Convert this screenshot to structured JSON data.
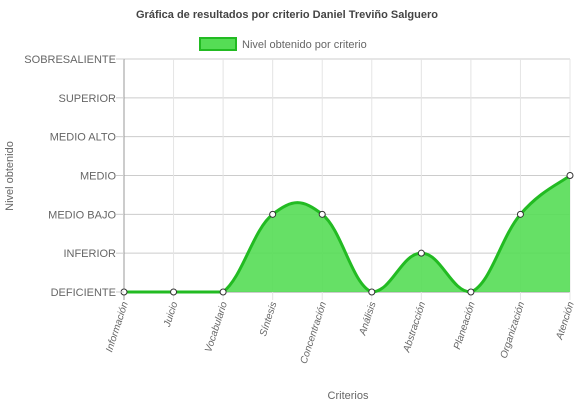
{
  "chart_data": {
    "type": "area",
    "title": "Gráfica de resultados por criterio Daniel Treviño Salguero",
    "xlabel": "Criterios",
    "ylabel": "Nivel obtenido",
    "legend": {
      "position": "top",
      "entries": [
        "Nivel obtenido por criterio"
      ]
    },
    "categories": [
      "Información",
      "Juicio",
      "Vocabulario",
      "Síntesis",
      "Concentración",
      "Análisis",
      "Abstracción",
      "Planeación",
      "Organización",
      "Atención"
    ],
    "y_tick_labels": [
      "DEFICIENTE",
      "INFERIOR",
      "MEDIO BAJO",
      "MEDIO",
      "MEDIO ALTO",
      "SUPERIOR",
      "SOBRESALIENTE"
    ],
    "ylim": [
      0,
      6
    ],
    "grid": true,
    "series": [
      {
        "name": "Nivel obtenido por criterio",
        "values": [
          0,
          0,
          0,
          2,
          2,
          0,
          1,
          0,
          2,
          3
        ]
      }
    ],
    "colors": {
      "line": "#22bb22",
      "fill": "#55dd55",
      "point_fill": "#ffffff",
      "point_stroke": "#333333",
      "grid": "#cccccc",
      "text": "#666666",
      "title": "#444444"
    }
  }
}
